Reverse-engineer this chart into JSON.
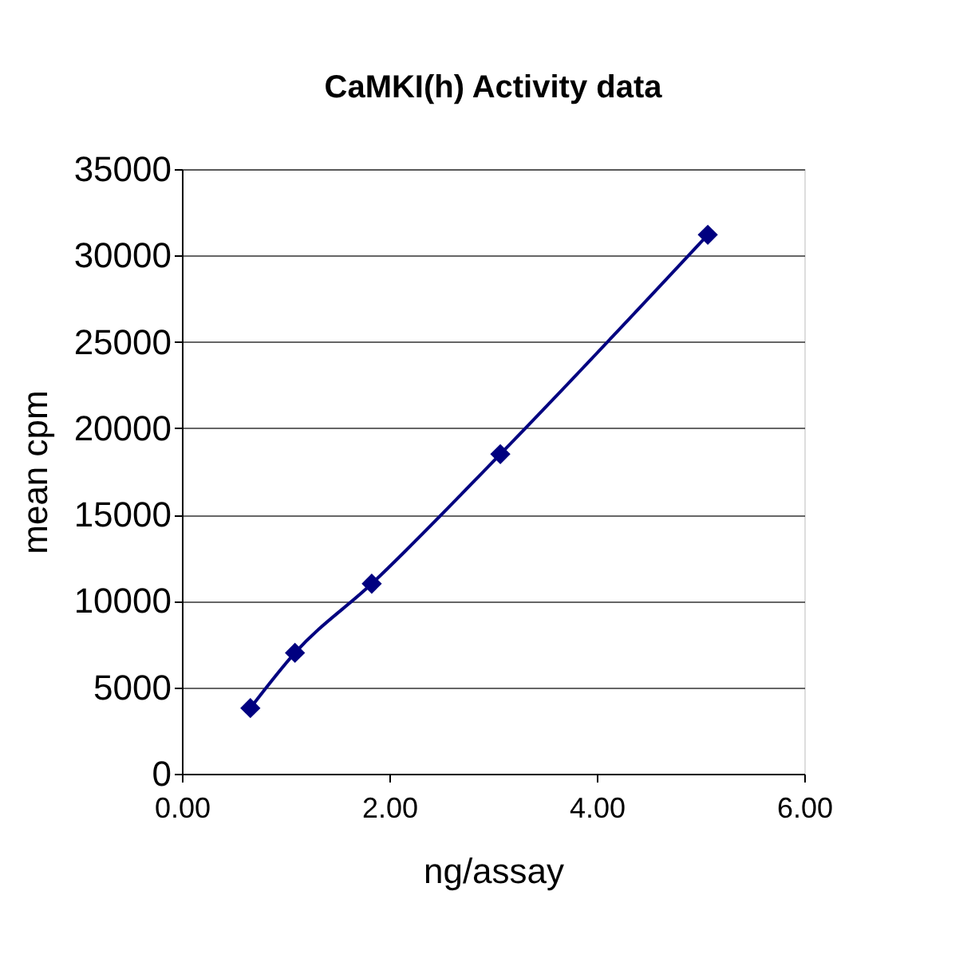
{
  "chart_data": {
    "type": "line",
    "title": "CaMKI(h) Activity data",
    "xlabel": "ng/assay",
    "ylabel": "mean cpm",
    "x": [
      0.66,
      1.09,
      1.83,
      3.07,
      5.07
    ],
    "series": [
      {
        "color": "#000080",
        "values": [
          3800,
          7000,
          11000,
          18500,
          31200
        ]
      }
    ],
    "xlim": [
      0,
      6
    ],
    "xticks": [
      {
        "value": 0,
        "label": "0.00"
      },
      {
        "value": 2,
        "label": "2.00"
      },
      {
        "value": 4,
        "label": "4.00"
      },
      {
        "value": 6,
        "label": "6.00"
      }
    ],
    "ylim": [
      0,
      35000
    ],
    "yticks": [
      0,
      5000,
      10000,
      15000,
      20000,
      25000,
      30000,
      35000
    ],
    "grid": "y",
    "marker": "diamond",
    "line_style": "solid"
  }
}
